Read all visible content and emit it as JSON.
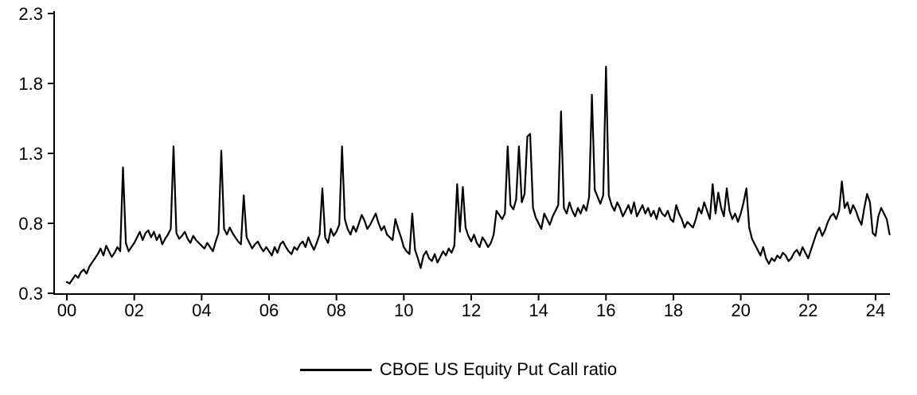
{
  "chart_data": {
    "type": "line",
    "title": "",
    "xlabel": "",
    "ylabel": "",
    "grid": false,
    "legend_position": "bottom",
    "xlim": [
      2000,
      2024.6
    ],
    "ylim": [
      0.3,
      2.3
    ],
    "x_ticks": [
      2000,
      2002,
      2004,
      2006,
      2008,
      2010,
      2012,
      2014,
      2016,
      2018,
      2020,
      2022,
      2024
    ],
    "x_tick_labels": [
      "00",
      "02",
      "04",
      "06",
      "08",
      "10",
      "12",
      "14",
      "16",
      "18",
      "20",
      "22",
      "24"
    ],
    "y_ticks": [
      0.3,
      0.8,
      1.3,
      1.8,
      2.3
    ],
    "y_tick_labels": [
      "0.3",
      "0.8",
      "1.3",
      "1.8",
      "2.3"
    ],
    "series": [
      {
        "name": "CBOE US Equity Put Call ratio",
        "color": "#000000",
        "x_start": 2000,
        "x_step": 0.0833333,
        "x_unit": "year (monthly samples)",
        "values": [
          0.38,
          0.37,
          0.4,
          0.43,
          0.41,
          0.45,
          0.47,
          0.44,
          0.49,
          0.52,
          0.55,
          0.58,
          0.62,
          0.57,
          0.64,
          0.6,
          0.56,
          0.59,
          0.63,
          0.6,
          1.2,
          0.66,
          0.6,
          0.63,
          0.66,
          0.7,
          0.74,
          0.68,
          0.73,
          0.75,
          0.7,
          0.74,
          0.68,
          0.72,
          0.65,
          0.69,
          0.72,
          0.76,
          1.35,
          0.73,
          0.69,
          0.71,
          0.74,
          0.69,
          0.66,
          0.71,
          0.68,
          0.66,
          0.64,
          0.62,
          0.66,
          0.63,
          0.6,
          0.67,
          0.73,
          1.32,
          0.76,
          0.72,
          0.77,
          0.73,
          0.7,
          0.67,
          0.65,
          1.0,
          0.7,
          0.66,
          0.62,
          0.65,
          0.67,
          0.63,
          0.6,
          0.63,
          0.6,
          0.57,
          0.63,
          0.59,
          0.65,
          0.67,
          0.63,
          0.6,
          0.58,
          0.63,
          0.61,
          0.65,
          0.67,
          0.63,
          0.7,
          0.65,
          0.61,
          0.66,
          0.72,
          1.05,
          0.7,
          0.66,
          0.76,
          0.71,
          0.74,
          0.79,
          1.35,
          0.83,
          0.76,
          0.72,
          0.78,
          0.74,
          0.8,
          0.86,
          0.82,
          0.76,
          0.79,
          0.83,
          0.87,
          0.8,
          0.75,
          0.78,
          0.72,
          0.7,
          0.68,
          0.83,
          0.76,
          0.7,
          0.63,
          0.6,
          0.58,
          0.87,
          0.61,
          0.55,
          0.48,
          0.57,
          0.6,
          0.55,
          0.53,
          0.58,
          0.52,
          0.56,
          0.6,
          0.57,
          0.62,
          0.59,
          0.64,
          1.08,
          0.74,
          1.06,
          0.77,
          0.71,
          0.67,
          0.72,
          0.66,
          0.63,
          0.7,
          0.67,
          0.63,
          0.66,
          0.72,
          0.89,
          0.86,
          0.83,
          0.87,
          1.35,
          0.93,
          0.9,
          0.97,
          1.35,
          0.95,
          1.01,
          1.42,
          1.44,
          0.91,
          0.84,
          0.8,
          0.76,
          0.87,
          0.83,
          0.79,
          0.85,
          0.89,
          0.93,
          1.6,
          0.91,
          0.87,
          0.95,
          0.89,
          0.85,
          0.91,
          0.87,
          0.93,
          0.89,
          0.99,
          1.72,
          1.04,
          0.99,
          0.94,
          1.0,
          1.92,
          1.0,
          0.93,
          0.89,
          0.95,
          0.91,
          0.85,
          0.89,
          0.93,
          0.87,
          0.95,
          0.85,
          0.89,
          0.93,
          0.87,
          0.91,
          0.85,
          0.89,
          0.83,
          0.91,
          0.87,
          0.85,
          0.89,
          0.83,
          0.81,
          0.93,
          0.87,
          0.83,
          0.77,
          0.81,
          0.79,
          0.77,
          0.83,
          0.91,
          0.87,
          0.95,
          0.89,
          0.83,
          1.08,
          0.87,
          1.02,
          0.91,
          0.85,
          1.05,
          0.89,
          0.83,
          0.87,
          0.81,
          0.87,
          0.95,
          1.05,
          0.77,
          0.69,
          0.65,
          0.61,
          0.57,
          0.63,
          0.55,
          0.51,
          0.55,
          0.53,
          0.57,
          0.55,
          0.59,
          0.57,
          0.53,
          0.55,
          0.59,
          0.61,
          0.57,
          0.63,
          0.59,
          0.55,
          0.61,
          0.67,
          0.73,
          0.77,
          0.71,
          0.75,
          0.81,
          0.85,
          0.87,
          0.83,
          0.89,
          1.1,
          0.91,
          0.95,
          0.87,
          0.93,
          0.89,
          0.83,
          0.79,
          0.91,
          1.01,
          0.95,
          0.73,
          0.71,
          0.85,
          0.91,
          0.87,
          0.83,
          0.72
        ]
      }
    ]
  },
  "legend": {
    "label": "CBOE US Equity Put Call ratio"
  },
  "colors": {
    "line": "#000000",
    "axis": "#000000",
    "background": "#ffffff",
    "text": "#000000"
  }
}
